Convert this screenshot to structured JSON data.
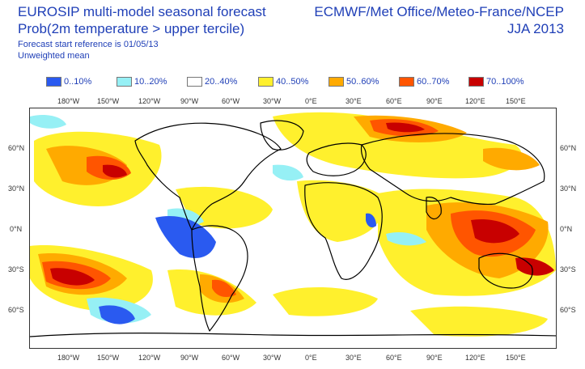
{
  "title_line1": "EUROSIP multi-model seasonal forecast",
  "title_line2": "Prob(2m temperature > upper tercile)",
  "subtitle_line1": "Forecast start reference is 01/05/13",
  "subtitle_line2": "Unweighted mean",
  "right_line1": "ECMWF/Met Office/Meteo-France/NCEP",
  "right_line2": "JJA 2013",
  "legend": [
    {
      "label": "0..10%",
      "color": "#2a5af0"
    },
    {
      "label": "10..20%",
      "color": "#96f0f5"
    },
    {
      "label": "20..40%",
      "color": "#ffffff"
    },
    {
      "label": "40..50%",
      "color": "#fff02d"
    },
    {
      "label": "50..60%",
      "color": "#ffaa00"
    },
    {
      "label": "60..70%",
      "color": "#ff5500"
    },
    {
      "label": "70..100%",
      "color": "#c80000"
    }
  ],
  "lon_labels": [
    "180°W",
    "150°W",
    "120°W",
    "90°W",
    "60°W",
    "30°W",
    "0°E",
    "30°E",
    "60°E",
    "90°E",
    "120°E",
    "150°E"
  ],
  "lat_labels": [
    "60°N",
    "30°N",
    "0°N",
    "30°S",
    "60°S"
  ]
}
